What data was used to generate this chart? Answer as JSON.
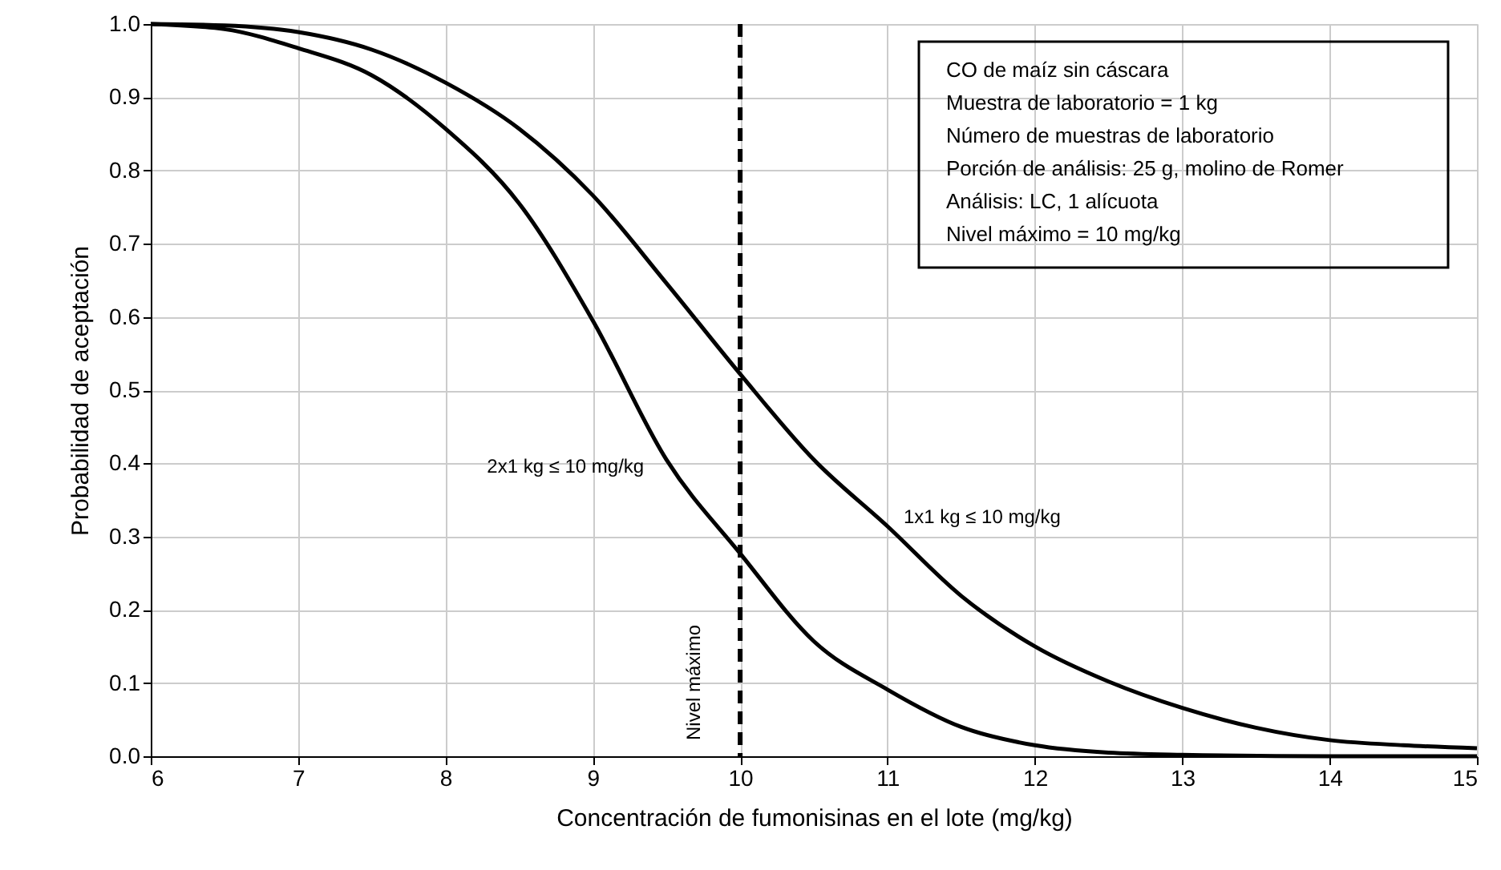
{
  "chart_data": {
    "type": "line",
    "xlabel": "Concentración de fumonisinas en el lote (mg/kg)",
    "ylabel": "Probabilidad de aceptación",
    "xlim": [
      6,
      15
    ],
    "xticks": [
      6,
      7,
      8,
      9,
      10,
      11,
      12,
      13,
      14,
      15
    ],
    "ylim": [
      0,
      1
    ],
    "yticks": [
      {
        "value": 0,
        "label": "0.0"
      },
      0.1,
      0.2,
      0.3,
      0.4,
      0.5,
      0.6,
      0.7,
      0.8,
      0.9,
      {
        "value": 1,
        "label": "1.0"
      }
    ],
    "grid": true,
    "marker": "none",
    "line_style": "solid",
    "series": [
      {
        "name": "1x1 kg ≤ 10 mg/kg",
        "color": "#000000",
        "x": [
          6,
          6.5,
          7,
          7.5,
          8,
          8.5,
          9,
          9.5,
          10,
          10.5,
          11,
          11.5,
          12,
          12.5,
          13,
          13.5,
          14,
          14.5,
          15
        ],
        "values": [
          1.0,
          0.998,
          0.989,
          0.965,
          0.92,
          0.857,
          0.766,
          0.646,
          0.522,
          0.405,
          0.314,
          0.219,
          0.15,
          0.102,
          0.066,
          0.039,
          0.022,
          0.015,
          0.011
        ]
      },
      {
        "name": "2x1 kg ≤ 10 mg/kg",
        "color": "#000000",
        "x": [
          6,
          6.5,
          7,
          7.5,
          8,
          8.5,
          9,
          9.5,
          10,
          10.5,
          11,
          11.5,
          12,
          12.5,
          13,
          14,
          15
        ],
        "values": [
          1.0,
          0.993,
          0.967,
          0.93,
          0.857,
          0.755,
          0.595,
          0.405,
          0.277,
          0.157,
          0.091,
          0.04,
          0.015,
          0.005,
          0.002,
          0.0,
          0.0
        ]
      }
    ],
    "ref_lines": [
      {
        "axis": "x",
        "value": 10,
        "label": "Nivel máximo",
        "color": "#000000",
        "line_style": "dashed"
      }
    ],
    "annotations": [
      "CO de maíz sin cáscara",
      "Muestra de laboratorio = 1 kg",
      "Número de muestras de laboratorio",
      "Porción de análisis: 25 g, molino de Romer",
      "Análisis: LC, 1 alícuota",
      "Nivel máximo = 10 mg/kg"
    ]
  }
}
